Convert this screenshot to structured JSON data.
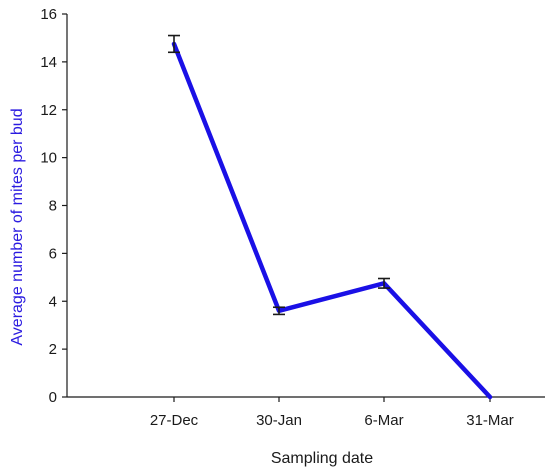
{
  "chart_data": {
    "type": "line",
    "title": "",
    "xlabel": "Sampling date",
    "ylabel": "Average number of mites per bud",
    "categories": [
      "27-Dec",
      "30-Jan",
      "6-Mar",
      "31-Mar"
    ],
    "series": [
      {
        "values": [
          14.75,
          3.6,
          4.75,
          0
        ],
        "error": [
          0.35,
          0.15,
          0.2,
          0
        ]
      }
    ],
    "ylim": [
      0,
      16
    ],
    "yticks": [
      0,
      2,
      4,
      6,
      8,
      10,
      12,
      14,
      16
    ],
    "grid": false,
    "legend": "none",
    "colors": {
      "line": "#1a10e6",
      "ylabel": "#2b1be0",
      "xlabel": "#1a1a1a",
      "axis": "#1a1a1a",
      "errorbar": "#1a1a1a"
    }
  }
}
